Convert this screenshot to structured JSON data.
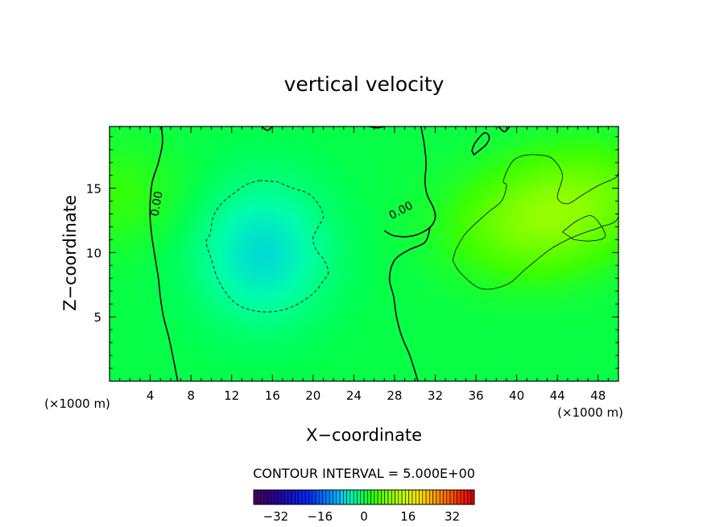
{
  "chart_data": {
    "type": "heatmap",
    "title": "vertical velocity",
    "xlabel": "X−coordinate",
    "ylabel": "Z−coordinate",
    "x_unit_left": "(×1000 m)",
    "x_unit_right": "(×1000 m)",
    "xlim": [
      0,
      50
    ],
    "ylim": [
      0,
      19.8
    ],
    "x_ticks": [
      4,
      8,
      12,
      16,
      20,
      24,
      28,
      32,
      36,
      40,
      44,
      48
    ],
    "y_ticks": [
      5,
      10,
      15
    ],
    "x_minor_step": 1,
    "y_minor_step": 1,
    "contour_interval_text": "CONTOUR INTERVAL = 5.000E+00",
    "contour_label": "0.00",
    "colorbar": {
      "range": [
        -40,
        40
      ],
      "ticks": [
        -32,
        -16,
        0,
        16,
        32
      ],
      "tick_labels": [
        "−32",
        "−16",
        "0",
        "16",
        "32"
      ],
      "bins": 64
    },
    "field_features": [
      {
        "name": "downdraft core",
        "x": 15,
        "z": 10,
        "value": -7
      },
      {
        "name": "updraft core",
        "x": 41,
        "z": 12,
        "value": 7
      },
      {
        "name": "right upper lobe",
        "x": 47,
        "z": 14.5,
        "value": 6
      },
      {
        "name": "left edge lobe",
        "x": 0.2,
        "z": 14.5,
        "value": 3
      }
    ],
    "contours": [
      {
        "level": 0,
        "style": "solid",
        "label_at": [
          4.6,
          13.8
        ],
        "label_angle": -80,
        "points": [
          [
            5.1,
            19.8
          ],
          [
            5.2,
            18.5
          ],
          [
            4.8,
            17
          ],
          [
            4.2,
            15.5
          ],
          [
            4.0,
            14
          ],
          [
            4.0,
            12.5
          ],
          [
            4.2,
            11
          ],
          [
            4.5,
            9.5
          ],
          [
            4.8,
            8
          ],
          [
            5.0,
            6.5
          ],
          [
            5.3,
            5
          ],
          [
            5.8,
            3.5
          ],
          [
            6.2,
            2
          ],
          [
            6.7,
            0
          ]
        ]
      },
      {
        "level": 0,
        "style": "solid",
        "label_at": [
          28.6,
          13.3
        ],
        "label_angle": -28,
        "points": [
          [
            30.6,
            19.8
          ],
          [
            30.9,
            18.5
          ],
          [
            31.1,
            17
          ],
          [
            31.0,
            15.5
          ],
          [
            31.2,
            14.5
          ],
          [
            31.8,
            13.5
          ],
          [
            32,
            12.7
          ],
          [
            31.4,
            11.9
          ],
          [
            29.8,
            11.3
          ],
          [
            28,
            11.3
          ],
          [
            27,
            11.7
          ]
        ]
      },
      {
        "level": 0,
        "style": "solid",
        "points": [
          [
            31.5,
            12.0
          ],
          [
            31.0,
            10.8
          ],
          [
            29.4,
            10.2
          ],
          [
            28.0,
            9.4
          ],
          [
            27.5,
            8.0
          ],
          [
            27.9,
            6.6
          ],
          [
            28.2,
            5.0
          ],
          [
            28.7,
            3.5
          ],
          [
            29.5,
            2.0
          ],
          [
            30.3,
            0
          ]
        ]
      },
      {
        "level": 0,
        "style": "solid",
        "closed": true,
        "points": [
          [
            35.8,
            17.6
          ],
          [
            37.0,
            18.4
          ],
          [
            37.3,
            19.0
          ],
          [
            36.8,
            19.3
          ],
          [
            35.9,
            18.5
          ],
          [
            35.6,
            17.9
          ]
        ]
      },
      {
        "level": 0,
        "style": "solid",
        "points": [
          [
            15.0,
            19.8
          ],
          [
            15.5,
            19.5
          ],
          [
            16.0,
            19.8
          ]
        ]
      },
      {
        "level": 0,
        "style": "solid",
        "points": [
          [
            25.5,
            19.8
          ],
          [
            26.3,
            19.7
          ],
          [
            27.0,
            19.8
          ]
        ]
      },
      {
        "level": 0,
        "style": "solid",
        "points": [
          [
            38.2,
            19.8
          ],
          [
            38.8,
            19.4
          ],
          [
            39.3,
            19.8
          ]
        ]
      },
      {
        "level": -5,
        "style": "dashed",
        "closed": true,
        "points": [
          [
            14.8,
            15.6
          ],
          [
            13.5,
            15.3
          ],
          [
            12.2,
            14.6
          ],
          [
            11.0,
            13.8
          ],
          [
            10.2,
            12.8
          ],
          [
            9.9,
            11.5
          ],
          [
            9.5,
            10.8
          ],
          [
            10.0,
            9.5
          ],
          [
            10.6,
            8.0
          ],
          [
            11.5,
            6.8
          ],
          [
            12.5,
            6.0
          ],
          [
            14.0,
            5.5
          ],
          [
            16.0,
            5.4
          ],
          [
            18.0,
            5.8
          ],
          [
            20.0,
            6.8
          ],
          [
            21.0,
            7.8
          ],
          [
            21.5,
            8.5
          ],
          [
            21.0,
            9.5
          ],
          [
            20.3,
            10.2
          ],
          [
            20.0,
            11.1
          ],
          [
            20.5,
            12.0
          ],
          [
            21.0,
            12.8
          ],
          [
            20.5,
            13.8
          ],
          [
            19.5,
            14.6
          ],
          [
            18.0,
            15.0
          ],
          [
            16.5,
            15.5
          ]
        ]
      },
      {
        "level": 5,
        "style": "solid",
        "thin": true,
        "closed": true,
        "points": [
          [
            34.0,
            10.2
          ],
          [
            35.0,
            11.5
          ],
          [
            37.0,
            13.0
          ],
          [
            38.5,
            14.0
          ],
          [
            39.0,
            15.2
          ],
          [
            38.7,
            15.6
          ],
          [
            39.5,
            17.0
          ],
          [
            40.5,
            17.5
          ],
          [
            42.0,
            17.6
          ],
          [
            43.5,
            17.3
          ],
          [
            44.5,
            16.0
          ],
          [
            44.0,
            14.3
          ],
          [
            45.0,
            13.8
          ],
          [
            46.5,
            14.5
          ],
          [
            48.0,
            15.2
          ],
          [
            49.7,
            15.8
          ],
          [
            50,
            16.0
          ],
          [
            50,
            12.8
          ],
          [
            48.3,
            12.0
          ],
          [
            46.5,
            11.5
          ],
          [
            45.0,
            11.0
          ],
          [
            43.2,
            10.2
          ],
          [
            41.0,
            8.8
          ],
          [
            39.0,
            7.5
          ],
          [
            36.5,
            7.2
          ],
          [
            34.5,
            8.4
          ],
          [
            33.7,
            9.4
          ]
        ]
      },
      {
        "level": 5,
        "style": "solid",
        "thin": true,
        "closed": true,
        "points": [
          [
            44.5,
            11.6
          ],
          [
            46.0,
            12.5
          ],
          [
            47.5,
            12.8
          ],
          [
            48.7,
            11.3
          ],
          [
            47.3,
            10.9
          ],
          [
            45.6,
            11.0
          ]
        ]
      }
    ]
  }
}
